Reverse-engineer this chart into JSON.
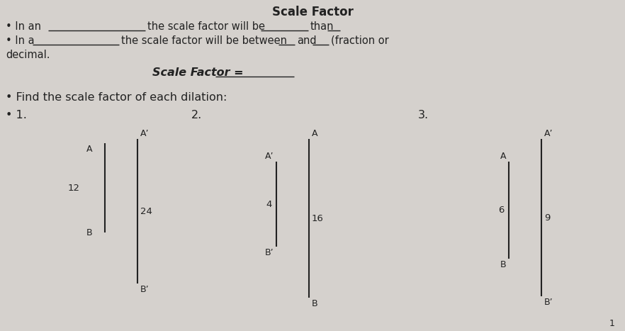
{
  "bg_color": "#d5d1cd",
  "title": "Scale Factor",
  "title_fontsize": 12,
  "line1_part1": "• In an",
  "line1_part2": "the scale factor will be",
  "line1_part3": "than",
  "line2_part1": "• In a",
  "line2_part2": "the scale factor will be between",
  "line2_part3": "and",
  "line2_part4": "(fraction or",
  "line3_text": "decimal.",
  "sf_label": "Scale Factor =",
  "find_text": "• Find the scale factor of each dilation:",
  "num1": "• 1.",
  "num2": "2.",
  "num3": "3.",
  "fig1": {
    "label_A": "A",
    "label_Ap": "A’",
    "label_B": "B",
    "label_Bp": "B’",
    "val_left": "12",
    "val_right": "24"
  },
  "fig2": {
    "label_A": "A",
    "label_Ap": "A’",
    "label_B": "B",
    "label_Bp": "B’",
    "val_left": "4",
    "val_right": "16"
  },
  "fig3": {
    "label_A": "A",
    "label_Ap": "A’",
    "label_B": "B",
    "label_Bp": "B’",
    "val_left": "6",
    "val_right": "9"
  },
  "footnote": "1",
  "text_color": "#222222",
  "line_color": "#222222",
  "font_size_body": 10.5,
  "font_size_fig": 9.0
}
